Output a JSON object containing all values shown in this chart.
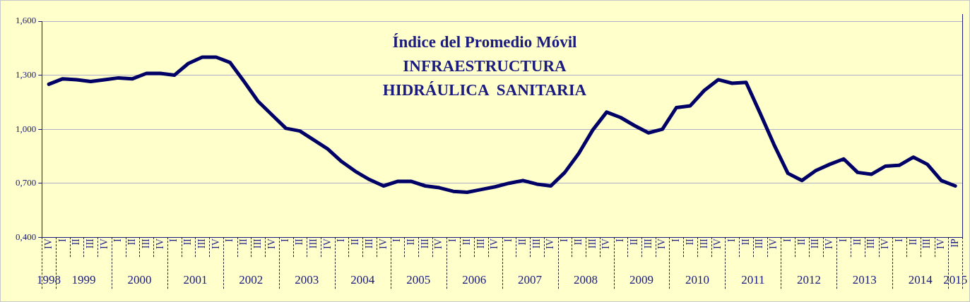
{
  "chart_data": {
    "type": "line",
    "title": "Índice del Promedio Móvil\nINFRAESTRUCTURA\nHIDRÁULICA  SANITARIA",
    "categories": [
      "IV",
      "I",
      "II",
      "III",
      "IV",
      "I",
      "II",
      "III",
      "IV",
      "I",
      "II",
      "III",
      "IV",
      "I",
      "II",
      "III",
      "IV",
      "I",
      "II",
      "III",
      "IV",
      "I",
      "II",
      "III",
      "IV",
      "I",
      "II",
      "III",
      "IV",
      "I",
      "II",
      "III",
      "IV",
      "I",
      "II",
      "III",
      "IV",
      "I",
      "II",
      "III",
      "IV",
      "I",
      "II",
      "III",
      "IV",
      "I",
      "II",
      "III",
      "IV",
      "I",
      "II",
      "III",
      "IV",
      "I",
      "II",
      "III",
      "IV",
      "I",
      "II",
      "III",
      "IV",
      "I",
      "II",
      "III",
      "IV",
      "IP"
    ],
    "series": [
      {
        "color": "#000066",
        "values": [
          1.25,
          1.28,
          1.275,
          1.265,
          1.275,
          1.285,
          1.28,
          1.31,
          1.31,
          1.3,
          1.365,
          1.4,
          1.4,
          1.37,
          1.265,
          1.155,
          1.08,
          1.005,
          0.99,
          0.94,
          0.89,
          0.82,
          0.765,
          0.72,
          0.685,
          0.71,
          0.71,
          0.685,
          0.675,
          0.655,
          0.65,
          0.665,
          0.68,
          0.7,
          0.715,
          0.695,
          0.685,
          0.76,
          0.865,
          0.995,
          1.095,
          1.065,
          1.02,
          0.98,
          1.0,
          1.12,
          1.13,
          1.215,
          1.275,
          1.255,
          1.26,
          1.09,
          0.915,
          0.755,
          0.715,
          0.77,
          0.805,
          0.835,
          0.76,
          0.75,
          0.795,
          0.8,
          0.845,
          0.805,
          0.715,
          0.685
        ]
      }
    ],
    "annotations": [
      "1998",
      "1999",
      "2000",
      "2001",
      "2002",
      "2003",
      "2004",
      "2005",
      "2006",
      "2007",
      "2008",
      "2009",
      "2010",
      "2011",
      "2012",
      "2013",
      "2014",
      "2015"
    ],
    "ylim": [
      0.4,
      1.6
    ],
    "yticks": [
      {
        "value": 0.4,
        "label": "0,400"
      },
      {
        "value": 0.7,
        "label": "0,700"
      },
      {
        "value": 1.0,
        "label": "1,000"
      },
      {
        "value": 1.3,
        "label": "1,300"
      },
      {
        "value": 1.6,
        "label": "1,600"
      }
    ],
    "grid": "y",
    "legend": false,
    "marker": "none",
    "line_style": "solid"
  }
}
